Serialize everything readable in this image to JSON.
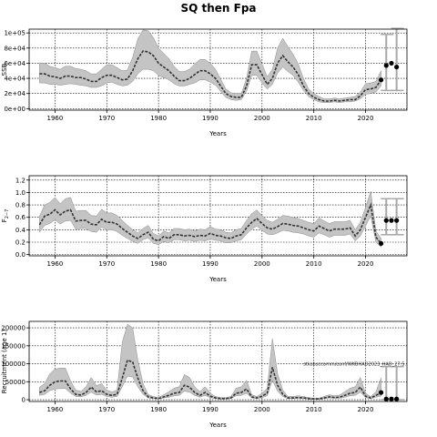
{
  "title": "SQ then Fpa",
  "colors": {
    "band": "#c4c4c4",
    "band_edge": "#8a8a8a",
    "line": "#333333",
    "proj": "#a8a8a8",
    "point": "#000000",
    "grid": "#000000"
  },
  "chart_data": [
    {
      "type": "area",
      "name": "ssb",
      "ylabel": "SSB",
      "xlabel": "Years",
      "xlim": [
        1955,
        2028
      ],
      "ylim": [
        -2000,
        105000
      ],
      "yticks": [
        0,
        20000,
        40000,
        60000,
        80000,
        100000
      ],
      "ytick_labels": [
        "0e+00",
        "2e+04",
        "4e+04",
        "6e+04",
        "8e+04",
        "1e+05"
      ],
      "xticks": [
        1960,
        1970,
        1980,
        1990,
        2000,
        2010,
        2020
      ],
      "grid": true,
      "years": [
        1957,
        1958,
        1959,
        1960,
        1961,
        1962,
        1963,
        1964,
        1965,
        1966,
        1967,
        1968,
        1969,
        1970,
        1971,
        1972,
        1973,
        1974,
        1975,
        1976,
        1977,
        1978,
        1979,
        1980,
        1981,
        1982,
        1983,
        1984,
        1985,
        1986,
        1987,
        1988,
        1989,
        1990,
        1991,
        1992,
        1993,
        1994,
        1995,
        1996,
        1997,
        1998,
        1999,
        2000,
        2001,
        2002,
        2003,
        2004,
        2005,
        2006,
        2007,
        2008,
        2009,
        2010,
        2011,
        2012,
        2013,
        2014,
        2015,
        2016,
        2017,
        2018,
        2019,
        2020,
        2021,
        2022,
        2023
      ],
      "median": [
        46000,
        46000,
        43000,
        42000,
        40000,
        43000,
        43000,
        41000,
        41000,
        39000,
        36000,
        36000,
        41000,
        44000,
        44000,
        41000,
        38000,
        39000,
        50000,
        66000,
        76000,
        75000,
        70000,
        60000,
        55000,
        50000,
        43000,
        37000,
        37000,
        40000,
        45000,
        50000,
        50000,
        46000,
        40000,
        30000,
        20000,
        16000,
        15000,
        15000,
        30000,
        58000,
        58000,
        45000,
        32000,
        40000,
        60000,
        70000,
        62000,
        55000,
        45000,
        30000,
        20000,
        15000,
        12000,
        10000,
        10000,
        11000,
        10000,
        11000,
        12000,
        12000,
        17000,
        25000,
        26000,
        28000,
        38000
      ],
      "lower": [
        34000,
        34000,
        32000,
        32000,
        31000,
        32000,
        33000,
        32000,
        31000,
        30000,
        28000,
        28000,
        30000,
        34000,
        35000,
        32000,
        30000,
        31000,
        36000,
        46000,
        52000,
        52000,
        50000,
        44000,
        41000,
        38000,
        33000,
        30000,
        30000,
        32000,
        34000,
        38000,
        38000,
        35000,
        31000,
        23000,
        15000,
        12000,
        11000,
        12000,
        23000,
        44000,
        44000,
        34000,
        26000,
        32000,
        47000,
        55000,
        49000,
        44000,
        35000,
        24000,
        16000,
        12000,
        9000,
        8000,
        8000,
        9000,
        8000,
        9000,
        9000,
        10000,
        13000,
        19000,
        20000,
        22000,
        30000
      ],
      "upper": [
        60000,
        60000,
        56000,
        54000,
        52000,
        56000,
        56000,
        53000,
        52000,
        50000,
        46000,
        46000,
        52000,
        58000,
        58000,
        54000,
        50000,
        51000,
        68000,
        92000,
        104000,
        103000,
        94000,
        80000,
        73000,
        66000,
        56000,
        49000,
        49000,
        52000,
        59000,
        65000,
        65000,
        60000,
        52000,
        39000,
        26000,
        21000,
        20000,
        20000,
        40000,
        76000,
        76000,
        59000,
        42000,
        52000,
        80000,
        93000,
        82000,
        72000,
        59000,
        40000,
        26000,
        20000,
        16000,
        13000,
        13000,
        14000,
        13000,
        14000,
        15000,
        16000,
        22000,
        33000,
        34000,
        36000,
        50000
      ],
      "projection": {
        "points": [
          [
            2024,
            57000
          ],
          [
            2025,
            60000
          ],
          [
            2026,
            55000
          ]
        ],
        "bars": [
          [
            2024,
            24000,
            98000
          ],
          [
            2026,
            24000,
            106000
          ]
        ]
      }
    },
    {
      "type": "area",
      "name": "fbar",
      "ylabel": "F",
      "ylabel_sub": "2−7",
      "xlabel": "Years",
      "xlim": [
        1955,
        2028
      ],
      "ylim": [
        -0.02,
        1.27
      ],
      "yticks": [
        0.0,
        0.2,
        0.4,
        0.6,
        0.8,
        1.0,
        1.2
      ],
      "ytick_labels": [
        "0.0",
        "0.2",
        "0.4",
        "0.6",
        "0.8",
        "1.0",
        "1.2"
      ],
      "xticks": [
        1960,
        1970,
        1980,
        1990,
        2000,
        2010,
        2020
      ],
      "grid": true,
      "years": [
        1957,
        1958,
        1959,
        1960,
        1961,
        1962,
        1963,
        1964,
        1965,
        1966,
        1967,
        1968,
        1969,
        1970,
        1971,
        1972,
        1973,
        1974,
        1975,
        1976,
        1977,
        1978,
        1979,
        1980,
        1981,
        1982,
        1983,
        1984,
        1985,
        1986,
        1987,
        1988,
        1989,
        1990,
        1991,
        1992,
        1993,
        1994,
        1995,
        1996,
        1997,
        1998,
        1999,
        2000,
        2001,
        2002,
        2003,
        2004,
        2005,
        2006,
        2007,
        2008,
        2009,
        2010,
        2011,
        2012,
        2013,
        2014,
        2015,
        2016,
        2017,
        2018,
        2019,
        2020,
        2021,
        2022,
        2023
      ],
      "median": [
        0.48,
        0.62,
        0.65,
        0.72,
        0.64,
        0.7,
        0.72,
        0.54,
        0.55,
        0.55,
        0.49,
        0.48,
        0.57,
        0.52,
        0.52,
        0.49,
        0.42,
        0.36,
        0.3,
        0.26,
        0.32,
        0.36,
        0.25,
        0.22,
        0.29,
        0.26,
        0.32,
        0.32,
        0.3,
        0.31,
        0.29,
        0.31,
        0.3,
        0.34,
        0.31,
        0.3,
        0.27,
        0.26,
        0.3,
        0.32,
        0.43,
        0.52,
        0.58,
        0.5,
        0.43,
        0.41,
        0.45,
        0.5,
        0.49,
        0.47,
        0.46,
        0.43,
        0.4,
        0.38,
        0.46,
        0.42,
        0.38,
        0.41,
        0.41,
        0.41,
        0.43,
        0.3,
        0.4,
        0.6,
        0.8,
        0.28,
        0.18
      ],
      "lower": [
        0.36,
        0.47,
        0.5,
        0.56,
        0.49,
        0.54,
        0.55,
        0.41,
        0.42,
        0.42,
        0.37,
        0.36,
        0.44,
        0.4,
        0.4,
        0.37,
        0.31,
        0.26,
        0.21,
        0.18,
        0.24,
        0.27,
        0.18,
        0.16,
        0.21,
        0.19,
        0.24,
        0.24,
        0.22,
        0.23,
        0.21,
        0.23,
        0.22,
        0.25,
        0.23,
        0.22,
        0.19,
        0.19,
        0.22,
        0.24,
        0.33,
        0.41,
        0.46,
        0.39,
        0.33,
        0.32,
        0.35,
        0.39,
        0.38,
        0.36,
        0.35,
        0.33,
        0.3,
        0.28,
        0.35,
        0.32,
        0.28,
        0.31,
        0.31,
        0.31,
        0.33,
        0.22,
        0.3,
        0.46,
        0.62,
        0.2,
        0.12
      ],
      "upper": [
        0.62,
        0.8,
        0.84,
        0.92,
        0.82,
        0.9,
        0.92,
        0.7,
        0.71,
        0.71,
        0.63,
        0.62,
        0.73,
        0.67,
        0.67,
        0.63,
        0.55,
        0.47,
        0.4,
        0.35,
        0.42,
        0.47,
        0.34,
        0.3,
        0.38,
        0.35,
        0.42,
        0.42,
        0.4,
        0.41,
        0.38,
        0.41,
        0.4,
        0.45,
        0.41,
        0.4,
        0.36,
        0.35,
        0.4,
        0.42,
        0.55,
        0.66,
        0.72,
        0.63,
        0.55,
        0.52,
        0.57,
        0.63,
        0.62,
        0.6,
        0.58,
        0.55,
        0.52,
        0.5,
        0.59,
        0.54,
        0.5,
        0.53,
        0.53,
        0.53,
        0.55,
        0.4,
        0.52,
        0.76,
        1.02,
        0.38,
        0.26
      ],
      "projection": {
        "points": [
          [
            2024,
            0.55
          ],
          [
            2025,
            0.55
          ],
          [
            2026,
            0.55
          ]
        ],
        "bars": [
          [
            2024,
            0.32,
            0.9
          ],
          [
            2026,
            0.32,
            0.9
          ]
        ]
      }
    },
    {
      "type": "area",
      "name": "recruitment",
      "ylabel": "Recruitment (age 1)",
      "xlabel": "Years",
      "xlim": [
        1955,
        2028
      ],
      "ylim": [
        -5000,
        218000
      ],
      "yticks": [
        0,
        50000,
        100000,
        150000,
        200000
      ],
      "ytick_labels": [
        "0",
        "50000",
        "100000",
        "150000",
        "200000"
      ],
      "xticks": [
        1960,
        1970,
        1980,
        1990,
        2000,
        2010,
        2020
      ],
      "grid": true,
      "annotation": "stkobsccomm/conf/WKBHAD2023_HAD_27.5.",
      "years": [
        1957,
        1958,
        1959,
        1960,
        1961,
        1962,
        1963,
        1964,
        1965,
        1966,
        1967,
        1968,
        1969,
        1970,
        1971,
        1972,
        1973,
        1974,
        1975,
        1976,
        1977,
        1978,
        1979,
        1980,
        1981,
        1982,
        1983,
        1984,
        1985,
        1986,
        1987,
        1988,
        1989,
        1990,
        1991,
        1992,
        1993,
        1994,
        1995,
        1996,
        1997,
        1998,
        1999,
        2000,
        2001,
        2002,
        2003,
        2004,
        2005,
        2006,
        2007,
        2008,
        2009,
        2010,
        2011,
        2012,
        2013,
        2014,
        2015,
        2016,
        2017,
        2018,
        2019,
        2020,
        2021,
        2022,
        2023
      ],
      "median": [
        20000,
        25000,
        40000,
        50000,
        52000,
        52000,
        30000,
        15000,
        13000,
        20000,
        35000,
        22000,
        25000,
        15000,
        12000,
        15000,
        60000,
        110000,
        105000,
        60000,
        25000,
        8000,
        5000,
        3000,
        8000,
        12000,
        18000,
        20000,
        40000,
        35000,
        20000,
        12000,
        20000,
        10000,
        5000,
        3000,
        3000,
        5000,
        18000,
        20000,
        30000,
        8000,
        5000,
        10000,
        18000,
        90000,
        40000,
        15000,
        5000,
        5000,
        6000,
        5000,
        3000,
        2000,
        2000,
        5000,
        8000,
        6000,
        7000,
        12000,
        18000,
        20000,
        35000,
        10000,
        5000,
        12000,
        20000
      ],
      "lower": [
        12000,
        15000,
        25000,
        30000,
        31000,
        31000,
        18000,
        9000,
        8000,
        12000,
        21000,
        13000,
        15000,
        9000,
        7000,
        9000,
        36000,
        66000,
        63000,
        36000,
        15000,
        5000,
        3000,
        2000,
        5000,
        7000,
        11000,
        12000,
        24000,
        21000,
        12000,
        7000,
        12000,
        6000,
        3000,
        2000,
        2000,
        3000,
        11000,
        12000,
        18000,
        5000,
        3000,
        6000,
        11000,
        54000,
        24000,
        9000,
        3000,
        3000,
        4000,
        3000,
        2000,
        1000,
        1000,
        3000,
        5000,
        4000,
        4000,
        7000,
        11000,
        12000,
        21000,
        6000,
        3000,
        7000,
        10000
      ],
      "upper": [
        35000,
        45000,
        72000,
        85000,
        88000,
        88000,
        52000,
        27000,
        23000,
        36000,
        62000,
        39000,
        45000,
        27000,
        21000,
        27000,
        160000,
        210000,
        200000,
        110000,
        45000,
        14000,
        9000,
        6000,
        14000,
        22000,
        32000,
        36000,
        70000,
        62000,
        36000,
        22000,
        36000,
        18000,
        9000,
        6000,
        6000,
        9000,
        32000,
        36000,
        54000,
        14000,
        9000,
        18000,
        32000,
        170000,
        72000,
        27000,
        9000,
        9000,
        11000,
        9000,
        6000,
        4000,
        4000,
        9000,
        14000,
        11000,
        13000,
        22000,
        32000,
        36000,
        62000,
        18000,
        9000,
        22000,
        60000
      ],
      "projection": {
        "points": [
          [
            2024,
            2000
          ],
          [
            2025,
            2000
          ],
          [
            2026,
            2000
          ]
        ],
        "bars": [
          [
            2024,
            0,
            92000
          ],
          [
            2026,
            0,
            92000
          ]
        ]
      }
    }
  ]
}
